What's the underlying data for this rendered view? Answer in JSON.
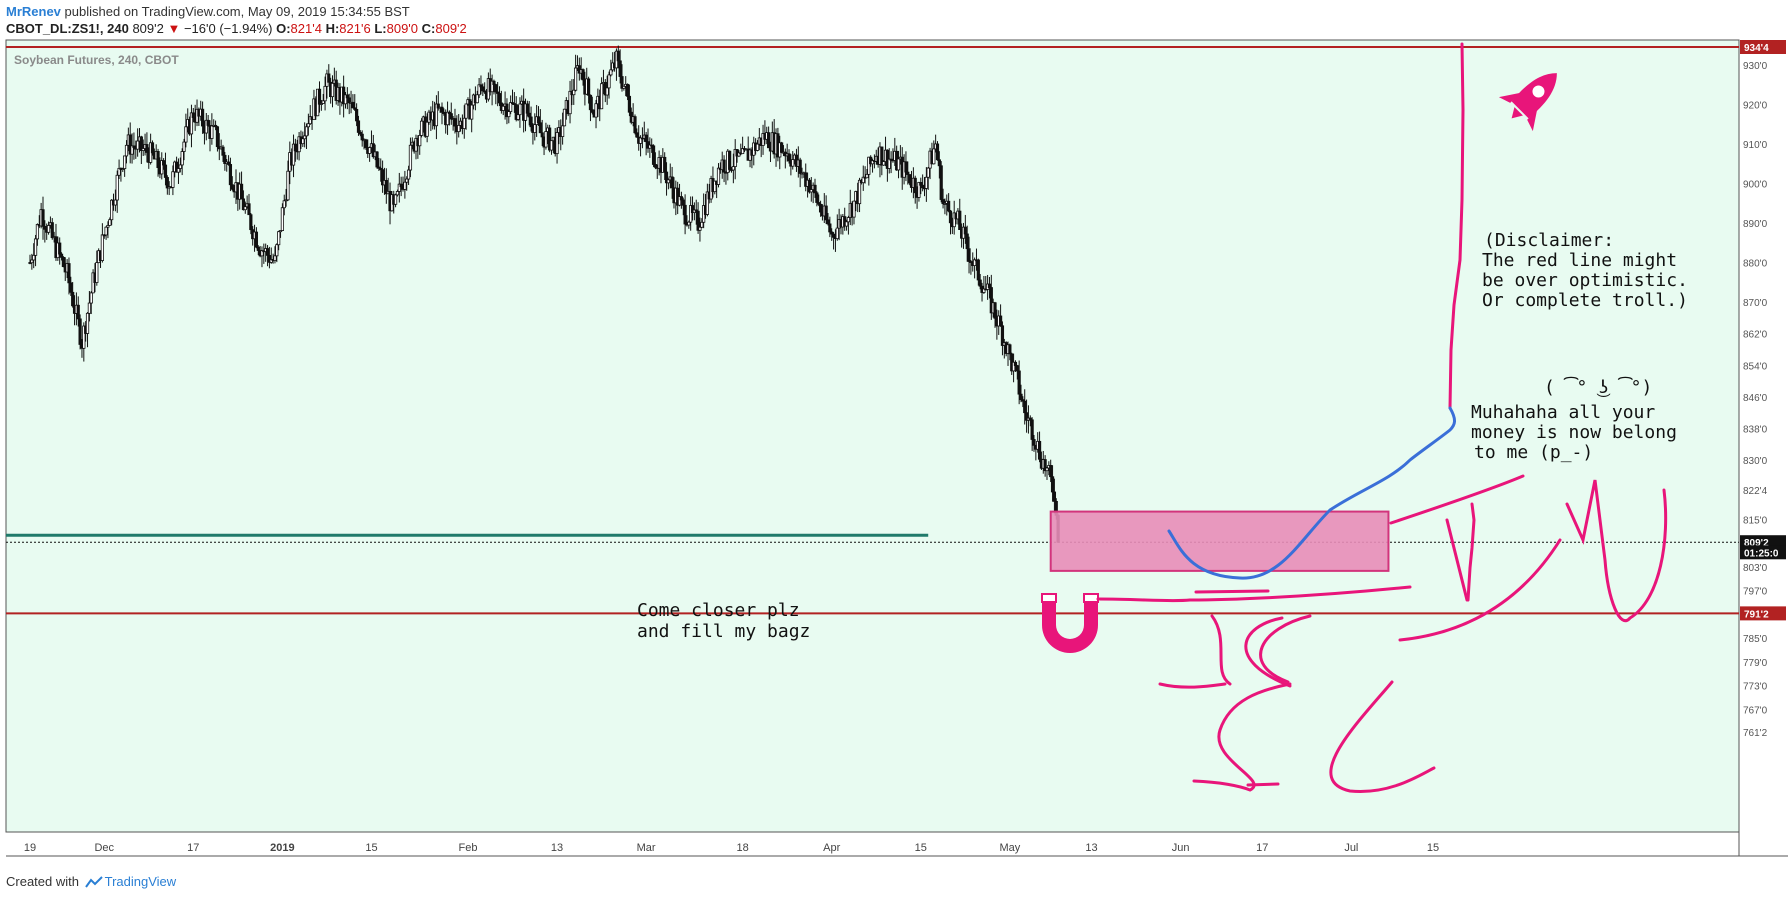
{
  "header": {
    "author": "MrRenev",
    "published_text": " published on TradingView.com, May 09, 2019 15:34:55 BST",
    "symbol": "CBOT_DL:ZS1!, 240",
    "last": "809'2",
    "change_arrow": "▼",
    "change": "−16'0 (−1.94%)",
    "o_label": "O:",
    "o_value": "821'4",
    "h_label": "H:",
    "h_value": "821'6",
    "l_label": "L:",
    "l_value": "809'0",
    "c_label": "C:",
    "c_value": "809'2"
  },
  "footer": {
    "created_with": "Created with",
    "brand": "TradingView"
  },
  "colors": {
    "background": "#e8fbf1",
    "candle": "#111111",
    "resistance": "#b22222",
    "green_line": "#1f7a6a",
    "annotation_pink": "#e8157a",
    "box_fill": "#e88db8",
    "blue_path": "#3a6fd8"
  },
  "chart_data": {
    "type": "candlestick",
    "title": "Soybean Futures, 240, CBOT",
    "y_axis_ticks": [
      "930'0",
      "920'0",
      "910'0",
      "900'0",
      "890'0",
      "880'0",
      "870'0",
      "862'0",
      "854'0",
      "846'0",
      "838'0",
      "830'0",
      "822'4",
      "815'0",
      "809'2",
      "803'0",
      "797'0",
      "791'2",
      "785'0",
      "779'0",
      "773'0",
      "767'0",
      "761'2"
    ],
    "y_tick_values": [
      930,
      920,
      910,
      900,
      890,
      880,
      870,
      862,
      854,
      846,
      838,
      830,
      822.5,
      815,
      809.25,
      803,
      797,
      791.25,
      785,
      779,
      773,
      767,
      761.25
    ],
    "y_range": [
      761,
      937
    ],
    "x_axis_ticks": [
      "19",
      "Dec",
      "17",
      "2019",
      "15",
      "Feb",
      "13",
      "Mar",
      "18",
      "Apr",
      "15",
      "May",
      "13",
      "Jun",
      "17",
      "Jul",
      "15"
    ],
    "x_tick_index": [
      0,
      20,
      44,
      68,
      92,
      118,
      142,
      166,
      192,
      216,
      240,
      264,
      286,
      310,
      332,
      356,
      378
    ],
    "x_range": [
      -6,
      426
    ],
    "price_tags": [
      {
        "label": "934'4",
        "value": 934.5,
        "style": "red"
      },
      {
        "label": "809'2",
        "value": 809.25,
        "style": "black"
      },
      {
        "label": "01:25:0",
        "value": 806.7,
        "style": "black"
      },
      {
        "label": "791'2",
        "value": 791.25,
        "style": "red"
      }
    ],
    "horizontal_lines": [
      {
        "value": 934.5,
        "style": "resistance"
      },
      {
        "value": 791.25,
        "style": "support"
      },
      {
        "value": 809.25,
        "style": "last-price-dotted"
      }
    ],
    "green_line": {
      "value": 811.0,
      "from_index": 0,
      "to_index": 242
    },
    "zone_box": {
      "x_from": 275,
      "x_to": 366,
      "y_from": 817,
      "y_to": 802
    },
    "trend_keypoints": [
      [
        0,
        880
      ],
      [
        3,
        893
      ],
      [
        6,
        886
      ],
      [
        10,
        877
      ],
      [
        14,
        860
      ],
      [
        17,
        875
      ],
      [
        22,
        895
      ],
      [
        26,
        910
      ],
      [
        32,
        908
      ],
      [
        38,
        900
      ],
      [
        44,
        918
      ],
      [
        50,
        912
      ],
      [
        56,
        898
      ],
      [
        62,
        884
      ],
      [
        66,
        880
      ],
      [
        70,
        905
      ],
      [
        74,
        915
      ],
      [
        80,
        925
      ],
      [
        86,
        920
      ],
      [
        92,
        908
      ],
      [
        98,
        893
      ],
      [
        104,
        912
      ],
      [
        110,
        918
      ],
      [
        116,
        915
      ],
      [
        122,
        925
      ],
      [
        128,
        920
      ],
      [
        134,
        918
      ],
      [
        138,
        912
      ],
      [
        142,
        910
      ],
      [
        148,
        930
      ],
      [
        152,
        918
      ],
      [
        158,
        931
      ],
      [
        164,
        912
      ],
      [
        170,
        905
      ],
      [
        176,
        893
      ],
      [
        180,
        890
      ],
      [
        186,
        905
      ],
      [
        192,
        906
      ],
      [
        198,
        912
      ],
      [
        204,
        908
      ],
      [
        210,
        900
      ],
      [
        216,
        887
      ],
      [
        222,
        895
      ],
      [
        228,
        908
      ],
      [
        234,
        905
      ],
      [
        240,
        898
      ],
      [
        244,
        910
      ],
      [
        246,
        895
      ],
      [
        250,
        890
      ],
      [
        254,
        880
      ],
      [
        258,
        872
      ],
      [
        262,
        862
      ],
      [
        266,
        850
      ],
      [
        268,
        842
      ],
      [
        270,
        838
      ],
      [
        272,
        832
      ],
      [
        274,
        827
      ],
      [
        276,
        822
      ],
      [
        277,
        809.25
      ]
    ],
    "annotations": [
      "Come closer plz",
      "and fill my bagz",
      "(Disclaimer:",
      "The red line might",
      "be over optimistic.",
      "Or complete troll.)",
      "( ͡° ͜ʖ ͡°)",
      "Muhahaha all your",
      "money is now belong",
      "to me (p_-)"
    ]
  }
}
